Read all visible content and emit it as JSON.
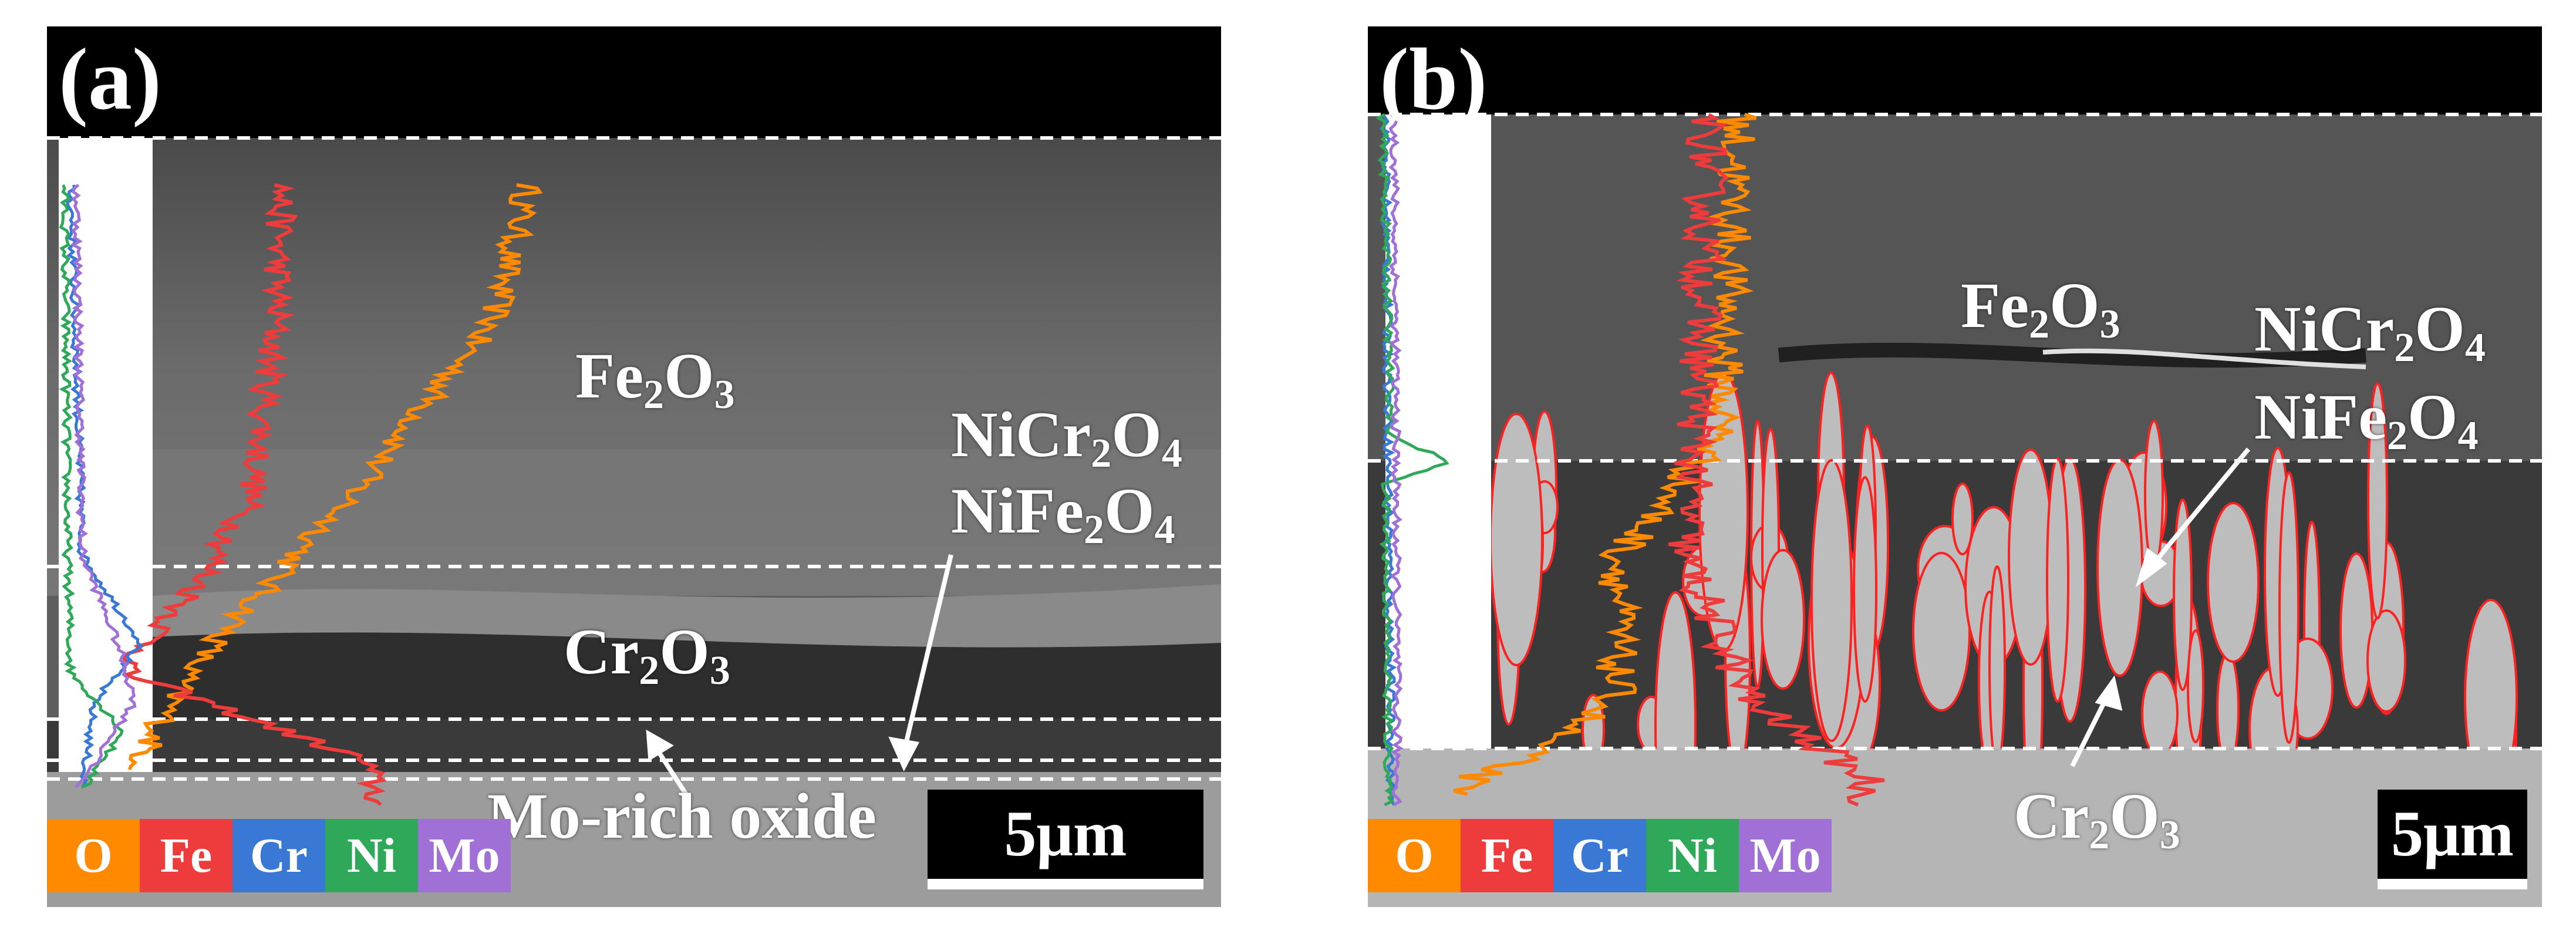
{
  "colors": {
    "O": "#ff8a00",
    "Fe": "#ee3c3c",
    "Cr": "#3a78d6",
    "Ni": "#2fa85a",
    "Mo": "#a070d6"
  },
  "panel_a": {
    "letter": "(a)",
    "labels": {
      "fe2o3_base": "Fe",
      "fe2o3_sub1": "2",
      "fe2o3_mid": "O",
      "fe2o3_sub2": "3",
      "nicr_base": "NiCr",
      "nicr_sub1": "2",
      "nicr_mid": "O",
      "nicr_sub2": "4",
      "nife_base": "NiFe",
      "nife_sub1": "2",
      "nife_mid": "O",
      "nife_sub2": "4",
      "cr2o3_base": "Cr",
      "cr2o3_sub1": "2",
      "cr2o3_mid": "O",
      "cr2o3_sub2": "3",
      "mo_rich": "Mo-rich oxide"
    },
    "scale_bar": "5μm",
    "legend": [
      "O",
      "Fe",
      "Cr",
      "Ni",
      "Mo"
    ]
  },
  "panel_b": {
    "letter": "(b)",
    "labels": {
      "fe2o3_base": "Fe",
      "fe2o3_sub1": "2",
      "fe2o3_mid": "O",
      "fe2o3_sub2": "3",
      "nicr_base": "NiCr",
      "nicr_sub1": "2",
      "nicr_mid": "O",
      "nicr_sub2": "4",
      "nife_base": "NiFe",
      "nife_sub1": "2",
      "nife_mid": "O",
      "nife_sub2": "4",
      "cr2o3_base": "Cr",
      "cr2o3_sub1": "2",
      "cr2o3_mid": "O",
      "cr2o3_sub2": "3"
    },
    "scale_bar": "5μm",
    "legend": [
      "O",
      "Fe",
      "Cr",
      "Ni",
      "Mo"
    ]
  }
}
